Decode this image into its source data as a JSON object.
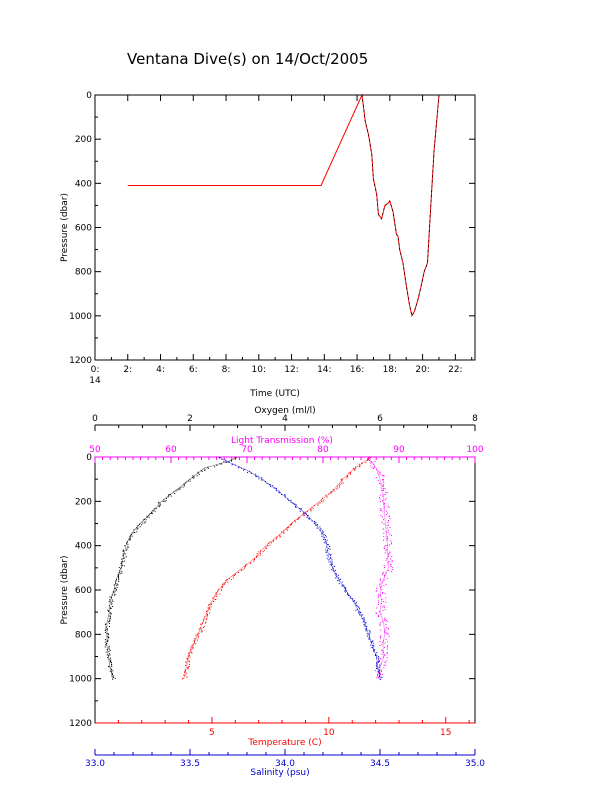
{
  "title": "Ventana Dive(s) on 14/Oct/2005",
  "colors": {
    "axis": "#000000",
    "track": "#ff0000",
    "temperature": "#ff0000",
    "salinity": "#0000cc",
    "oxygen": "#000000",
    "light": "#ff00ff"
  },
  "chart_data": [
    {
      "type": "line",
      "xlabel": "Time (UTC)",
      "ylabel": "Pressure (dbar)",
      "xlim": [
        0,
        23.2
      ],
      "ylim": [
        1200,
        0
      ],
      "x_ticks": [
        {
          "value": 0,
          "label": "0:",
          "sub": "14"
        },
        {
          "value": 2,
          "label": "2:"
        },
        {
          "value": 4,
          "label": "4:"
        },
        {
          "value": 6,
          "label": "6:"
        },
        {
          "value": 8,
          "label": "8:"
        },
        {
          "value": 10,
          "label": "10:"
        },
        {
          "value": 12,
          "label": "12:"
        },
        {
          "value": 14,
          "label": "14:"
        },
        {
          "value": 16,
          "label": "16:"
        },
        {
          "value": 18,
          "label": "18:"
        },
        {
          "value": 20,
          "label": "20:"
        },
        {
          "value": 22,
          "label": "22:"
        }
      ],
      "y_ticks": [
        0,
        200,
        400,
        600,
        800,
        1000,
        1200
      ],
      "series": [
        {
          "color": "#ff0000",
          "x": [
            2.0,
            13.8,
            16.3,
            16.5,
            16.7,
            16.9,
            17.0,
            17.2,
            17.3,
            17.5,
            17.7,
            17.9,
            18.0,
            18.2,
            18.4,
            18.5,
            18.6,
            18.8,
            18.9,
            19.0,
            19.2,
            19.35,
            19.5,
            19.7,
            19.9,
            20.1,
            20.3,
            20.5,
            20.7,
            21.0
          ],
          "y": [
            410,
            410,
            0,
            120,
            180,
            270,
            380,
            450,
            540,
            560,
            500,
            490,
            480,
            530,
            630,
            640,
            700,
            760,
            810,
            860,
            950,
            1000,
            980,
            930,
            870,
            800,
            760,
            500,
            250,
            0
          ]
        }
      ]
    },
    {
      "type": "scatter",
      "ylabel": "Pressure (dbar)",
      "ylim": [
        1200,
        0
      ],
      "y_ticks": [
        0,
        200,
        400,
        600,
        800,
        1000,
        1200
      ],
      "axes": {
        "oxygen": {
          "label": "Oxygen (ml/l)",
          "range": [
            0,
            8
          ],
          "ticks": [
            0,
            2,
            4,
            6,
            8
          ],
          "tick_labels": [
            "0",
            "2",
            "4",
            "6",
            "8"
          ]
        },
        "light": {
          "label": "Light Transmission (%)",
          "range": [
            50,
            100
          ],
          "ticks": [
            50,
            60,
            70,
            80,
            90,
            100
          ],
          "tick_labels": [
            "50",
            "60",
            "70",
            "80",
            "90",
            "100"
          ]
        },
        "temperature": {
          "label": "Temperature (C)",
          "range": [
            0,
            16.25
          ],
          "ticks": [
            5,
            10,
            15
          ],
          "tick_labels": [
            "5",
            "10",
            "15"
          ]
        },
        "salinity": {
          "label": "Salinity (psu)",
          "range": [
            33.0,
            35.0
          ],
          "ticks": [
            33.0,
            33.5,
            34.0,
            34.5,
            35.0
          ],
          "tick_labels": [
            "33.0",
            "33.5",
            "34.0",
            "34.5",
            "35.0"
          ]
        }
      },
      "series": [
        {
          "axis": "oxygen",
          "color": "#000000",
          "pressure": [
            0,
            20,
            50,
            100,
            150,
            200,
            250,
            300,
            350,
            400,
            450,
            500,
            550,
            600,
            650,
            700,
            750,
            800,
            850,
            900,
            950,
            1000
          ],
          "values": [
            3.0,
            2.8,
            2.3,
            2.0,
            1.7,
            1.4,
            1.2,
            0.95,
            0.75,
            0.65,
            0.6,
            0.55,
            0.45,
            0.4,
            0.32,
            0.3,
            0.25,
            0.25,
            0.25,
            0.28,
            0.32,
            0.38
          ]
        },
        {
          "axis": "light",
          "color": "#ff00ff",
          "pressure": [
            0,
            50,
            100,
            200,
            300,
            400,
            450,
            500,
            550,
            600,
            650,
            700,
            750,
            800,
            850,
            900,
            950,
            1000
          ],
          "values": [
            86,
            87,
            87.5,
            88,
            88.2,
            88.5,
            88.5,
            88.6,
            88.0,
            87.5,
            87.7,
            87.5,
            88.0,
            88.1,
            87.9,
            88.0,
            87.5,
            87.0
          ]
        },
        {
          "axis": "temperature",
          "color": "#ff0000",
          "pressure": [
            0,
            30,
            60,
            100,
            150,
            200,
            250,
            300,
            350,
            400,
            450,
            500,
            550,
            600,
            650,
            700,
            750,
            800,
            850,
            900,
            950,
            1000
          ],
          "values": [
            11.8,
            11.4,
            11.0,
            10.6,
            10.2,
            9.6,
            9.0,
            8.4,
            7.9,
            7.3,
            6.9,
            6.3,
            5.7,
            5.3,
            5.0,
            4.8,
            4.6,
            4.4,
            4.2,
            4.0,
            3.9,
            3.8
          ]
        },
        {
          "axis": "salinity",
          "color": "#0000cc",
          "pressure": [
            0,
            30,
            60,
            100,
            150,
            200,
            250,
            300,
            350,
            400,
            450,
            500,
            550,
            600,
            650,
            700,
            750,
            800,
            850,
            900,
            950,
            1000
          ],
          "values": [
            33.65,
            33.72,
            33.8,
            33.88,
            33.96,
            34.03,
            34.1,
            34.16,
            34.2,
            34.22,
            34.23,
            34.25,
            34.28,
            34.32,
            34.36,
            34.39,
            34.42,
            34.44,
            34.46,
            34.48,
            34.49,
            34.5
          ]
        }
      ]
    }
  ]
}
